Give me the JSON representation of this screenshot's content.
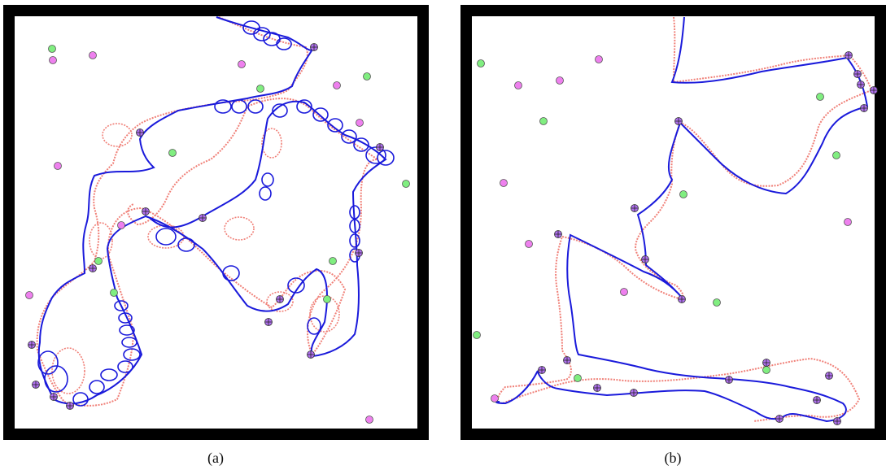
{
  "colors": {
    "frame": "#000000",
    "path_blue": "#1a1adb",
    "path_salmon": "#f08078",
    "dot_green": "#80ee80",
    "dot_magenta": "#ee80ee",
    "waypoint_fill": "#b070f0"
  },
  "panels": [
    {
      "caption": "(a)"
    },
    {
      "caption": "(b)"
    }
  ]
}
